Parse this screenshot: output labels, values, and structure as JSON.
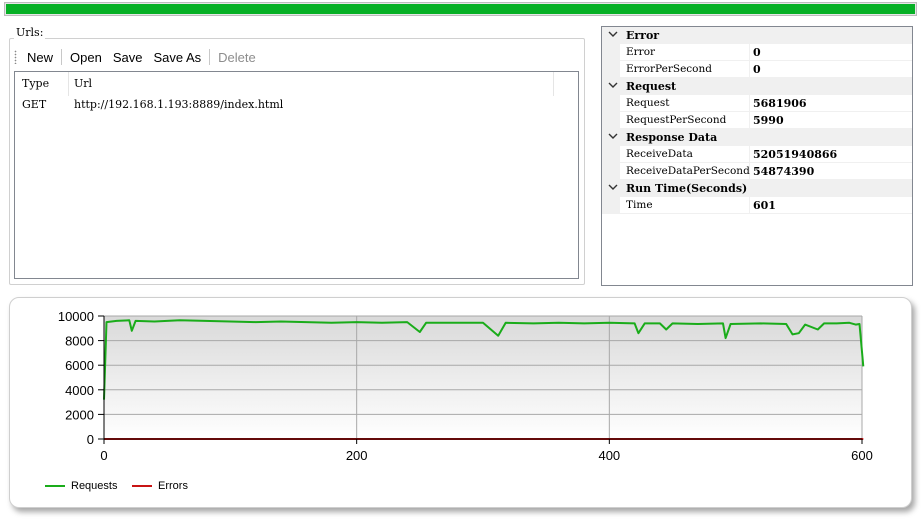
{
  "progress": {
    "value_percent": 100,
    "color": "#06b025"
  },
  "urls": {
    "title": "Urls:",
    "toolbar": {
      "new_label": "New",
      "open_label": "Open",
      "save_label": "Save",
      "save_as_label": "Save As",
      "delete_label": "Delete"
    },
    "columns": [
      "Type",
      "Url"
    ],
    "rows": [
      {
        "type": "GET",
        "url": "http://192.168.1.193:8889/index.html"
      }
    ]
  },
  "properties": {
    "categories": [
      {
        "label": "Error",
        "items": [
          {
            "name": "Error",
            "value": "0"
          },
          {
            "name": "ErrorPerSecond",
            "value": "0"
          }
        ]
      },
      {
        "label": "Request",
        "items": [
          {
            "name": "Request",
            "value": "5681906"
          },
          {
            "name": "RequestPerSecond",
            "value": "5990"
          }
        ]
      },
      {
        "label": "Response Data",
        "items": [
          {
            "name": "ReceiveData",
            "value": "52051940866"
          },
          {
            "name": "ReceiveDataPerSecond",
            "value": "54874390"
          }
        ]
      },
      {
        "label": "Run Time(Seconds)",
        "items": [
          {
            "name": "Time",
            "value": "601"
          }
        ]
      }
    ]
  },
  "chart_data": {
    "type": "line",
    "xlim": [
      0,
      600
    ],
    "ylim": [
      0,
      10000
    ],
    "x_ticks": [
      "0",
      "200",
      "400",
      "600"
    ],
    "y_ticks": [
      "0",
      "2000",
      "4000",
      "6000",
      "8000",
      "10000"
    ],
    "grid": true,
    "legend_position": "bottom-left",
    "series": [
      {
        "name": "Requests",
        "color": "#1aac1a",
        "points": [
          [
            0,
            3200
          ],
          [
            2,
            9500
          ],
          [
            10,
            9600
          ],
          [
            20,
            9650
          ],
          [
            22,
            8800
          ],
          [
            25,
            9600
          ],
          [
            40,
            9550
          ],
          [
            60,
            9650
          ],
          [
            80,
            9600
          ],
          [
            100,
            9550
          ],
          [
            120,
            9500
          ],
          [
            140,
            9550
          ],
          [
            160,
            9500
          ],
          [
            180,
            9450
          ],
          [
            200,
            9500
          ],
          [
            220,
            9450
          ],
          [
            240,
            9500
          ],
          [
            250,
            8700
          ],
          [
            255,
            9450
          ],
          [
            280,
            9450
          ],
          [
            300,
            9450
          ],
          [
            312,
            8400
          ],
          [
            318,
            9450
          ],
          [
            340,
            9400
          ],
          [
            360,
            9450
          ],
          [
            380,
            9400
          ],
          [
            400,
            9450
          ],
          [
            420,
            9400
          ],
          [
            423,
            8600
          ],
          [
            428,
            9400
          ],
          [
            440,
            9400
          ],
          [
            445,
            8900
          ],
          [
            450,
            9400
          ],
          [
            470,
            9350
          ],
          [
            490,
            9400
          ],
          [
            492,
            8200
          ],
          [
            496,
            9350
          ],
          [
            520,
            9400
          ],
          [
            540,
            9350
          ],
          [
            545,
            8500
          ],
          [
            550,
            8600
          ],
          [
            555,
            9300
          ],
          [
            565,
            8900
          ],
          [
            570,
            9400
          ],
          [
            580,
            9400
          ],
          [
            590,
            9450
          ],
          [
            595,
            9300
          ],
          [
            598,
            9350
          ],
          [
            601,
            5900
          ]
        ]
      },
      {
        "name": "Errors",
        "color": "#c81414",
        "points": [
          [
            0,
            0
          ],
          [
            601,
            0
          ]
        ]
      }
    ]
  }
}
